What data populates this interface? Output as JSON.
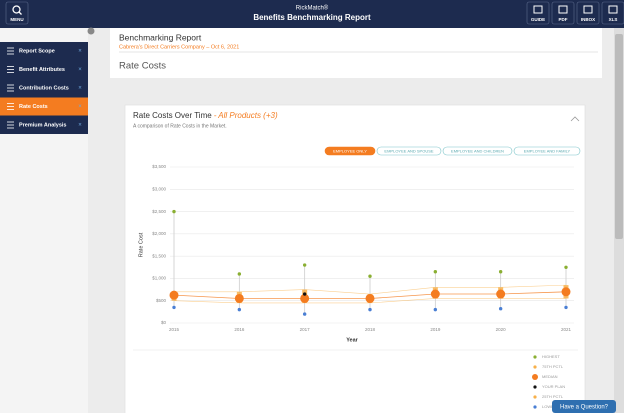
{
  "header": {
    "menu": "MENU",
    "brand": "RickMatch®",
    "title": "Benefits Benchmarking Report",
    "actions": [
      "GUIDE",
      "PDF",
      "INBOX",
      "XLS"
    ]
  },
  "sidebar": {
    "items": [
      "Report Scope",
      "Benefit Attributes",
      "Contribution Costs",
      "Rate Costs",
      "Premium Analysis"
    ],
    "active": 3
  },
  "report": {
    "title": "Benchmarking Report",
    "company": "Cabrera's Direct Carriers Company – Oct 6, 2021",
    "section": "Rate Costs"
  },
  "chart_data": {
    "type": "range",
    "title": "Rate Costs Over Time",
    "annotation": "- All Products (+3)",
    "subtitle": "A comparison of Rate Costs in the Market.",
    "filters": [
      "EMPLOYEE ONLY",
      "EMPLOYEE AND SPOUSE",
      "EMPLOYEE AND CHILDREN",
      "EMPLOYEE AND FAMILY"
    ],
    "active_filter": 0,
    "categories": [
      "2015",
      "2016",
      "2017",
      "2018",
      "2019",
      "2020",
      "2021"
    ],
    "xlabel": "Year",
    "ylabel": "Rate Cost",
    "ylim": [
      0,
      3500
    ],
    "yticks": [
      {
        "value": 0,
        "label": "$0"
      },
      {
        "value": 500,
        "label": "$500"
      },
      {
        "value": 1000,
        "label": "$1,000"
      },
      {
        "value": 1500,
        "label": "$1,500"
      },
      {
        "value": 2000,
        "label": "$2,000"
      },
      {
        "value": 2500,
        "label": "$2,500"
      },
      {
        "value": 3000,
        "label": "$3,000"
      },
      {
        "value": 3500,
        "label": "$3,500"
      }
    ],
    "grid": true,
    "series": [
      {
        "name": "HIGHEST",
        "color": "#8aaf32",
        "values": [
          2500,
          1100,
          1300,
          1050,
          1150,
          1150,
          1250
        ]
      },
      {
        "name": "75TH PCTL",
        "color": "#f8b04a",
        "values": [
          700,
          700,
          750,
          650,
          800,
          800,
          850
        ]
      },
      {
        "name": "MEDIAN",
        "color": "#f47c20",
        "values": [
          625,
          550,
          550,
          550,
          650,
          650,
          700
        ]
      },
      {
        "name": "YOUR PLAN",
        "color": "#111111",
        "values": [
          null,
          null,
          650,
          null,
          null,
          null,
          null
        ]
      },
      {
        "name": "25TH PCTL",
        "color": "#f8b04a",
        "values": [
          500,
          450,
          450,
          450,
          550,
          550,
          550
        ]
      },
      {
        "name": "LOWEST",
        "color": "#4a7fd4",
        "values": [
          350,
          300,
          200,
          300,
          300,
          320,
          350
        ]
      }
    ]
  },
  "help": "Have a Question?"
}
